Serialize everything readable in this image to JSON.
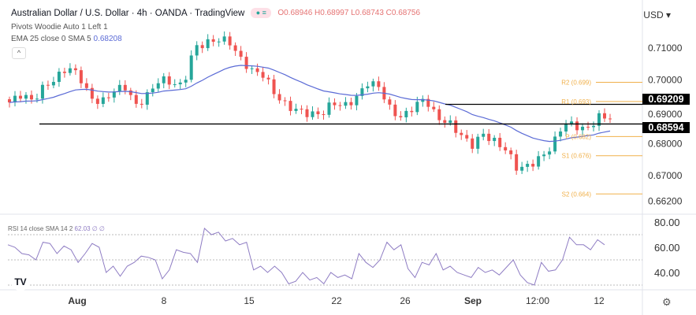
{
  "header": {
    "title": "Australian Dollar / U.S. Dollar · 4h · OANDA · TradingView",
    "ohlc": "O0.68946 H0.68997 L0.68743 C0.68756",
    "currency": "USD",
    "currency_icon": "chevron-down-icon"
  },
  "indicators": {
    "pivots": "Pivots Woodie Auto 1 Left 1",
    "ema": "EMA 25 close 0 SMA 5",
    "ema_value": "0.68208",
    "rsi": "RSI 14 close SMA 14 2",
    "rsi_value": "62.03 ∅ ∅"
  },
  "chart_data": [
    {
      "type": "candlestick",
      "price_axis": [
        "0.71000",
        "0.70000",
        "0.69000",
        "0.68000",
        "0.67000",
        "0.66200"
      ],
      "ylim": [
        0.6615,
        0.7125
      ],
      "x_ticks": [
        "Aug",
        "8",
        "15",
        "22",
        "26",
        "Sep",
        "12:00",
        "12"
      ],
      "closes": [
        0.6927,
        0.6952,
        0.6932,
        0.6977,
        0.7001,
        0.7038,
        0.7014,
        0.694,
        0.6927,
        0.6964,
        0.6977,
        0.6915,
        0.6952,
        0.7001,
        0.6989,
        0.6977,
        0.71,
        0.7112,
        0.7125,
        0.712,
        0.7063,
        0.7026,
        0.7014,
        0.6952,
        0.6915,
        0.6902,
        0.689,
        0.689,
        0.6927,
        0.6915,
        0.694,
        0.6989,
        0.6977,
        0.6902,
        0.6878,
        0.6915,
        0.694,
        0.6878,
        0.6865,
        0.6828,
        0.6791,
        0.6828,
        0.6804,
        0.6779,
        0.6717,
        0.673,
        0.6754,
        0.6791,
        0.6865,
        0.6853,
        0.6841,
        0.6883,
        0.68756
      ],
      "horizontal_lines": [
        {
          "value": 0.69209,
          "label": "0.69209"
        },
        {
          "value": 0.68594,
          "label": "0.68594"
        }
      ],
      "pivots": [
        {
          "label": "R2 (0.699)",
          "value": 0.699
        },
        {
          "label": "R1 (0.693)",
          "value": 0.693
        },
        {
          "label": "P (0.682)",
          "value": 0.682
        },
        {
          "label": "S1 (0.676)",
          "value": 0.676
        },
        {
          "label": "S2 (0.664)",
          "value": 0.664
        }
      ],
      "colors": {
        "up": "#26a69a",
        "down": "#ef5350",
        "ema": "#5b6bd6",
        "pivot": "#f0b04a"
      }
    },
    {
      "type": "line",
      "name": "RSI",
      "axis": [
        "80.00",
        "60.00",
        "40.00"
      ],
      "bands": [
        70,
        50,
        30
      ],
      "ylim": [
        25,
        82
      ],
      "values": [
        62,
        60,
        55,
        54,
        50,
        64,
        63,
        55,
        61,
        58,
        48,
        55,
        63,
        60,
        40,
        45,
        37,
        45,
        48,
        53,
        52,
        50,
        35,
        42,
        58,
        56,
        55,
        48,
        75,
        70,
        72,
        65,
        67,
        62,
        64,
        42,
        45,
        40,
        45,
        40,
        31,
        33,
        40,
        34,
        36,
        31,
        40,
        36,
        38,
        35,
        55,
        48,
        44,
        50,
        64,
        58,
        62,
        43,
        36,
        48,
        46,
        55,
        42,
        45,
        40,
        38,
        36,
        44,
        40,
        42,
        38,
        44,
        50,
        38,
        32,
        30,
        48,
        41,
        42,
        50,
        68,
        62,
        62,
        58,
        66,
        62
      ],
      "color": "#8e7cc3"
    }
  ]
}
